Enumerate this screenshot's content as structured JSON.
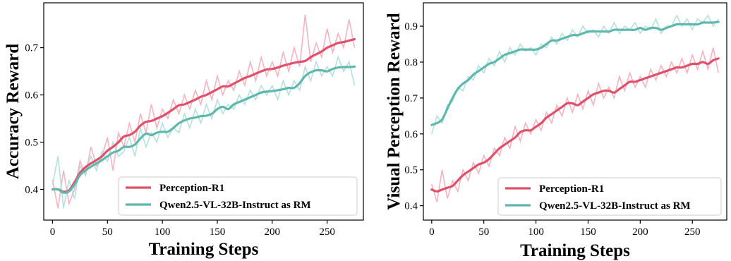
{
  "colors": {
    "perception": "#e0506b",
    "qwen": "#5fb8ad",
    "perception_raw": "#f2a6b5",
    "qwen_raw": "#a9dcd5"
  },
  "chart_data": [
    {
      "type": "line",
      "title": "",
      "xlabel": "Training Steps",
      "ylabel": "Accuracy Reward",
      "xlim": [
        -8,
        283
      ],
      "ylim": [
        0.335,
        0.795
      ],
      "xticks": [
        0,
        50,
        100,
        150,
        200,
        250
      ],
      "yticks": [
        0.4,
        0.5,
        0.6,
        0.7
      ],
      "ytick_labels": [
        "0.4",
        "0.5",
        "0.6",
        "0.7"
      ],
      "grid": false,
      "legend_position": "lower-right",
      "series": [
        {
          "name": "Perception-R1",
          "color_key": "perception",
          "x": [
            0,
            5,
            10,
            15,
            20,
            25,
            30,
            35,
            40,
            45,
            50,
            55,
            60,
            65,
            70,
            75,
            80,
            85,
            90,
            95,
            100,
            105,
            110,
            115,
            120,
            125,
            130,
            135,
            140,
            145,
            150,
            155,
            160,
            165,
            170,
            175,
            180,
            185,
            190,
            195,
            200,
            205,
            210,
            215,
            220,
            225,
            230,
            235,
            240,
            245,
            250,
            255,
            260,
            265,
            270,
            275
          ],
          "values": [
            0.4,
            0.4,
            0.395,
            0.398,
            0.415,
            0.435,
            0.447,
            0.455,
            0.462,
            0.47,
            0.482,
            0.49,
            0.5,
            0.512,
            0.515,
            0.522,
            0.535,
            0.543,
            0.545,
            0.55,
            0.555,
            0.562,
            0.57,
            0.578,
            0.58,
            0.585,
            0.59,
            0.596,
            0.6,
            0.606,
            0.612,
            0.618,
            0.618,
            0.624,
            0.63,
            0.636,
            0.64,
            0.645,
            0.65,
            0.654,
            0.655,
            0.658,
            0.662,
            0.665,
            0.668,
            0.67,
            0.672,
            0.68,
            0.686,
            0.692,
            0.7,
            0.705,
            0.71,
            0.712,
            0.715,
            0.718
          ],
          "raw": [
            0.42,
            0.36,
            0.44,
            0.37,
            0.4,
            0.46,
            0.43,
            0.49,
            0.45,
            0.47,
            0.51,
            0.44,
            0.52,
            0.49,
            0.54,
            0.5,
            0.56,
            0.52,
            0.58,
            0.53,
            0.57,
            0.55,
            0.59,
            0.56,
            0.6,
            0.57,
            0.61,
            0.58,
            0.63,
            0.59,
            0.64,
            0.6,
            0.63,
            0.61,
            0.65,
            0.62,
            0.67,
            0.63,
            0.68,
            0.64,
            0.67,
            0.64,
            0.69,
            0.65,
            0.7,
            0.66,
            0.77,
            0.67,
            0.71,
            0.68,
            0.74,
            0.69,
            0.73,
            0.7,
            0.76,
            0.7
          ]
        },
        {
          "name": "Qwen2.5-VL-32B-Instruct as RM",
          "color_key": "qwen",
          "x": [
            0,
            5,
            10,
            15,
            20,
            25,
            30,
            35,
            40,
            45,
            50,
            55,
            60,
            65,
            70,
            75,
            80,
            85,
            90,
            95,
            100,
            105,
            110,
            115,
            120,
            125,
            130,
            135,
            140,
            145,
            150,
            155,
            160,
            165,
            170,
            175,
            180,
            185,
            190,
            195,
            200,
            205,
            210,
            215,
            220,
            225,
            230,
            235,
            240,
            245,
            250,
            255,
            260,
            265,
            270,
            275
          ],
          "values": [
            0.4,
            0.4,
            0.393,
            0.396,
            0.41,
            0.43,
            0.44,
            0.448,
            0.455,
            0.462,
            0.47,
            0.478,
            0.482,
            0.49,
            0.49,
            0.495,
            0.508,
            0.518,
            0.515,
            0.52,
            0.522,
            0.522,
            0.53,
            0.54,
            0.546,
            0.55,
            0.552,
            0.555,
            0.556,
            0.56,
            0.57,
            0.575,
            0.57,
            0.58,
            0.585,
            0.59,
            0.595,
            0.6,
            0.605,
            0.607,
            0.608,
            0.61,
            0.612,
            0.615,
            0.615,
            0.625,
            0.64,
            0.648,
            0.652,
            0.652,
            0.65,
            0.655,
            0.658,
            0.659,
            0.659,
            0.66
          ],
          "raw": [
            0.41,
            0.47,
            0.36,
            0.42,
            0.38,
            0.45,
            0.43,
            0.47,
            0.44,
            0.48,
            0.46,
            0.5,
            0.47,
            0.48,
            0.51,
            0.47,
            0.53,
            0.49,
            0.52,
            0.5,
            0.54,
            0.51,
            0.53,
            0.52,
            0.56,
            0.53,
            0.57,
            0.54,
            0.58,
            0.55,
            0.59,
            0.56,
            0.58,
            0.57,
            0.6,
            0.58,
            0.61,
            0.59,
            0.62,
            0.6,
            0.62,
            0.59,
            0.63,
            0.6,
            0.63,
            0.61,
            0.66,
            0.63,
            0.67,
            0.64,
            0.66,
            0.64,
            0.68,
            0.65,
            0.67,
            0.62
          ]
        }
      ]
    },
    {
      "type": "line",
      "title": "",
      "xlabel": "Training Steps",
      "ylabel": "Visual Perception Reward",
      "xlim": [
        -8,
        283
      ],
      "ylim": [
        0.36,
        0.965
      ],
      "xticks": [
        0,
        50,
        100,
        150,
        200,
        250
      ],
      "yticks": [
        0.4,
        0.5,
        0.6,
        0.7,
        0.8,
        0.9
      ],
      "ytick_labels": [
        "0.4",
        "0.5",
        "0.6",
        "0.7",
        "0.8",
        "0.9"
      ],
      "grid": false,
      "legend_position": "lower-right",
      "series": [
        {
          "name": "Perception-R1",
          "color_key": "perception",
          "x": [
            0,
            5,
            10,
            15,
            20,
            25,
            30,
            35,
            40,
            45,
            50,
            55,
            60,
            65,
            70,
            75,
            80,
            85,
            90,
            95,
            100,
            105,
            110,
            115,
            120,
            125,
            130,
            135,
            140,
            145,
            150,
            155,
            160,
            165,
            170,
            175,
            180,
            185,
            190,
            195,
            200,
            205,
            210,
            215,
            220,
            225,
            230,
            235,
            240,
            245,
            250,
            255,
            260,
            265,
            270,
            275
          ],
          "values": [
            0.445,
            0.44,
            0.445,
            0.45,
            0.455,
            0.47,
            0.485,
            0.495,
            0.505,
            0.515,
            0.52,
            0.53,
            0.545,
            0.56,
            0.57,
            0.58,
            0.59,
            0.605,
            0.61,
            0.61,
            0.62,
            0.63,
            0.645,
            0.655,
            0.665,
            0.675,
            0.685,
            0.685,
            0.68,
            0.69,
            0.7,
            0.71,
            0.715,
            0.72,
            0.72,
            0.715,
            0.725,
            0.735,
            0.745,
            0.745,
            0.75,
            0.755,
            0.76,
            0.765,
            0.77,
            0.775,
            0.78,
            0.785,
            0.785,
            0.79,
            0.795,
            0.795,
            0.8,
            0.795,
            0.805,
            0.81
          ],
          "raw": [
            0.46,
            0.41,
            0.5,
            0.42,
            0.47,
            0.44,
            0.5,
            0.47,
            0.52,
            0.49,
            0.54,
            0.51,
            0.56,
            0.54,
            0.59,
            0.56,
            0.62,
            0.58,
            0.63,
            0.6,
            0.64,
            0.61,
            0.66,
            0.63,
            0.68,
            0.65,
            0.7,
            0.66,
            0.71,
            0.67,
            0.72,
            0.68,
            0.74,
            0.7,
            0.73,
            0.7,
            0.76,
            0.72,
            0.77,
            0.73,
            0.76,
            0.73,
            0.78,
            0.75,
            0.79,
            0.76,
            0.8,
            0.77,
            0.81,
            0.77,
            0.82,
            0.78,
            0.83,
            0.78,
            0.84,
            0.77
          ]
        },
        {
          "name": "Qwen2.5-VL-32B-Instruct as RM",
          "color_key": "qwen",
          "x": [
            0,
            5,
            10,
            15,
            20,
            25,
            30,
            35,
            40,
            45,
            50,
            55,
            60,
            65,
            70,
            75,
            80,
            85,
            90,
            95,
            100,
            105,
            110,
            115,
            120,
            125,
            130,
            135,
            140,
            145,
            150,
            155,
            160,
            165,
            170,
            175,
            180,
            185,
            190,
            195,
            200,
            205,
            210,
            215,
            220,
            225,
            230,
            235,
            240,
            245,
            250,
            255,
            260,
            265,
            270,
            275
          ],
          "values": [
            0.625,
            0.63,
            0.64,
            0.67,
            0.7,
            0.725,
            0.74,
            0.75,
            0.765,
            0.775,
            0.785,
            0.795,
            0.8,
            0.81,
            0.82,
            0.825,
            0.83,
            0.835,
            0.835,
            0.835,
            0.835,
            0.84,
            0.85,
            0.86,
            0.86,
            0.865,
            0.87,
            0.875,
            0.875,
            0.88,
            0.885,
            0.885,
            0.885,
            0.885,
            0.885,
            0.89,
            0.89,
            0.89,
            0.89,
            0.89,
            0.895,
            0.89,
            0.895,
            0.895,
            0.89,
            0.895,
            0.9,
            0.905,
            0.905,
            0.905,
            0.905,
            0.905,
            0.91,
            0.91,
            0.91,
            0.912
          ],
          "raw": [
            0.6,
            0.65,
            0.63,
            0.68,
            0.69,
            0.73,
            0.72,
            0.76,
            0.75,
            0.79,
            0.77,
            0.81,
            0.79,
            0.83,
            0.8,
            0.84,
            0.82,
            0.85,
            0.83,
            0.84,
            0.82,
            0.85,
            0.84,
            0.87,
            0.85,
            0.88,
            0.86,
            0.89,
            0.87,
            0.9,
            0.88,
            0.89,
            0.87,
            0.9,
            0.88,
            0.91,
            0.88,
            0.9,
            0.89,
            0.91,
            0.88,
            0.9,
            0.89,
            0.92,
            0.88,
            0.9,
            0.9,
            0.93,
            0.9,
            0.92,
            0.89,
            0.92,
            0.91,
            0.93,
            0.9,
            0.92
          ]
        }
      ]
    }
  ]
}
